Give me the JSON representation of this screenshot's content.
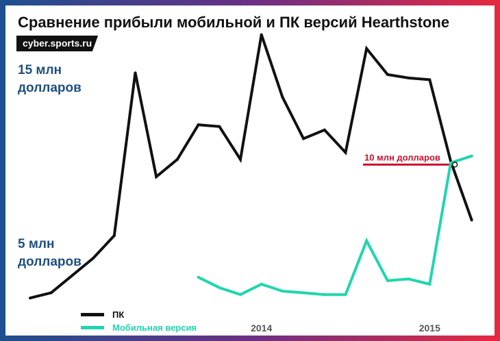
{
  "title": "Сравнение прибыли мобильной и ПК версий Hearthstone",
  "brand": "cyber.sports.ru",
  "colors": {
    "pc": "#111111",
    "mobile": "#1fd6ad",
    "accent": "#c8102e",
    "label": "#1f4f7f",
    "tick": "#555555"
  },
  "chart_data": {
    "type": "line",
    "title": "Сравнение прибыли мобильной и ПК версий Hearthstone",
    "x": [
      0,
      1,
      2,
      3,
      4,
      5,
      6,
      7,
      8,
      9,
      10,
      11,
      12,
      13,
      14,
      15,
      16,
      17,
      18,
      19,
      20,
      21
    ],
    "ylim": [
      0,
      20
    ],
    "y_labels": [
      {
        "value": 15,
        "lines": [
          "15 млн",
          "долларов"
        ]
      },
      {
        "value": 5,
        "lines": [
          "5 млн",
          "долларов"
        ]
      }
    ],
    "x_ticks": [
      {
        "x": 11,
        "label": "2014"
      },
      {
        "x": 19,
        "label": "2015"
      }
    ],
    "series": [
      {
        "name": "ПК",
        "color": "#111111",
        "x": [
          0,
          1,
          2,
          3,
          4,
          5,
          6,
          7,
          8,
          9,
          10,
          11,
          12,
          13,
          14,
          15,
          16,
          17,
          18,
          19,
          20,
          21
        ],
        "values": [
          0.9,
          1.2,
          2.2,
          3.2,
          4.5,
          13.9,
          7.9,
          8.9,
          10.9,
          10.8,
          8.9,
          16.1,
          12.5,
          10.1,
          10.6,
          9.3,
          15.3,
          13.8,
          13.6,
          13.5,
          8.8,
          5.4
        ]
      },
      {
        "name": "Мобильная версия",
        "color": "#1fd6ad",
        "x": [
          8,
          9,
          10,
          11,
          12,
          13,
          14,
          15,
          16,
          17,
          18,
          19,
          20,
          21
        ],
        "values": [
          2.1,
          1.5,
          1.1,
          1.7,
          1.3,
          1.2,
          1.1,
          1.1,
          4.2,
          1.9,
          2.0,
          1.7,
          8.7,
          9.1
        ]
      }
    ],
    "annotation": {
      "label": "10 млн долларов",
      "x": 20.2,
      "value": 8.6
    }
  }
}
